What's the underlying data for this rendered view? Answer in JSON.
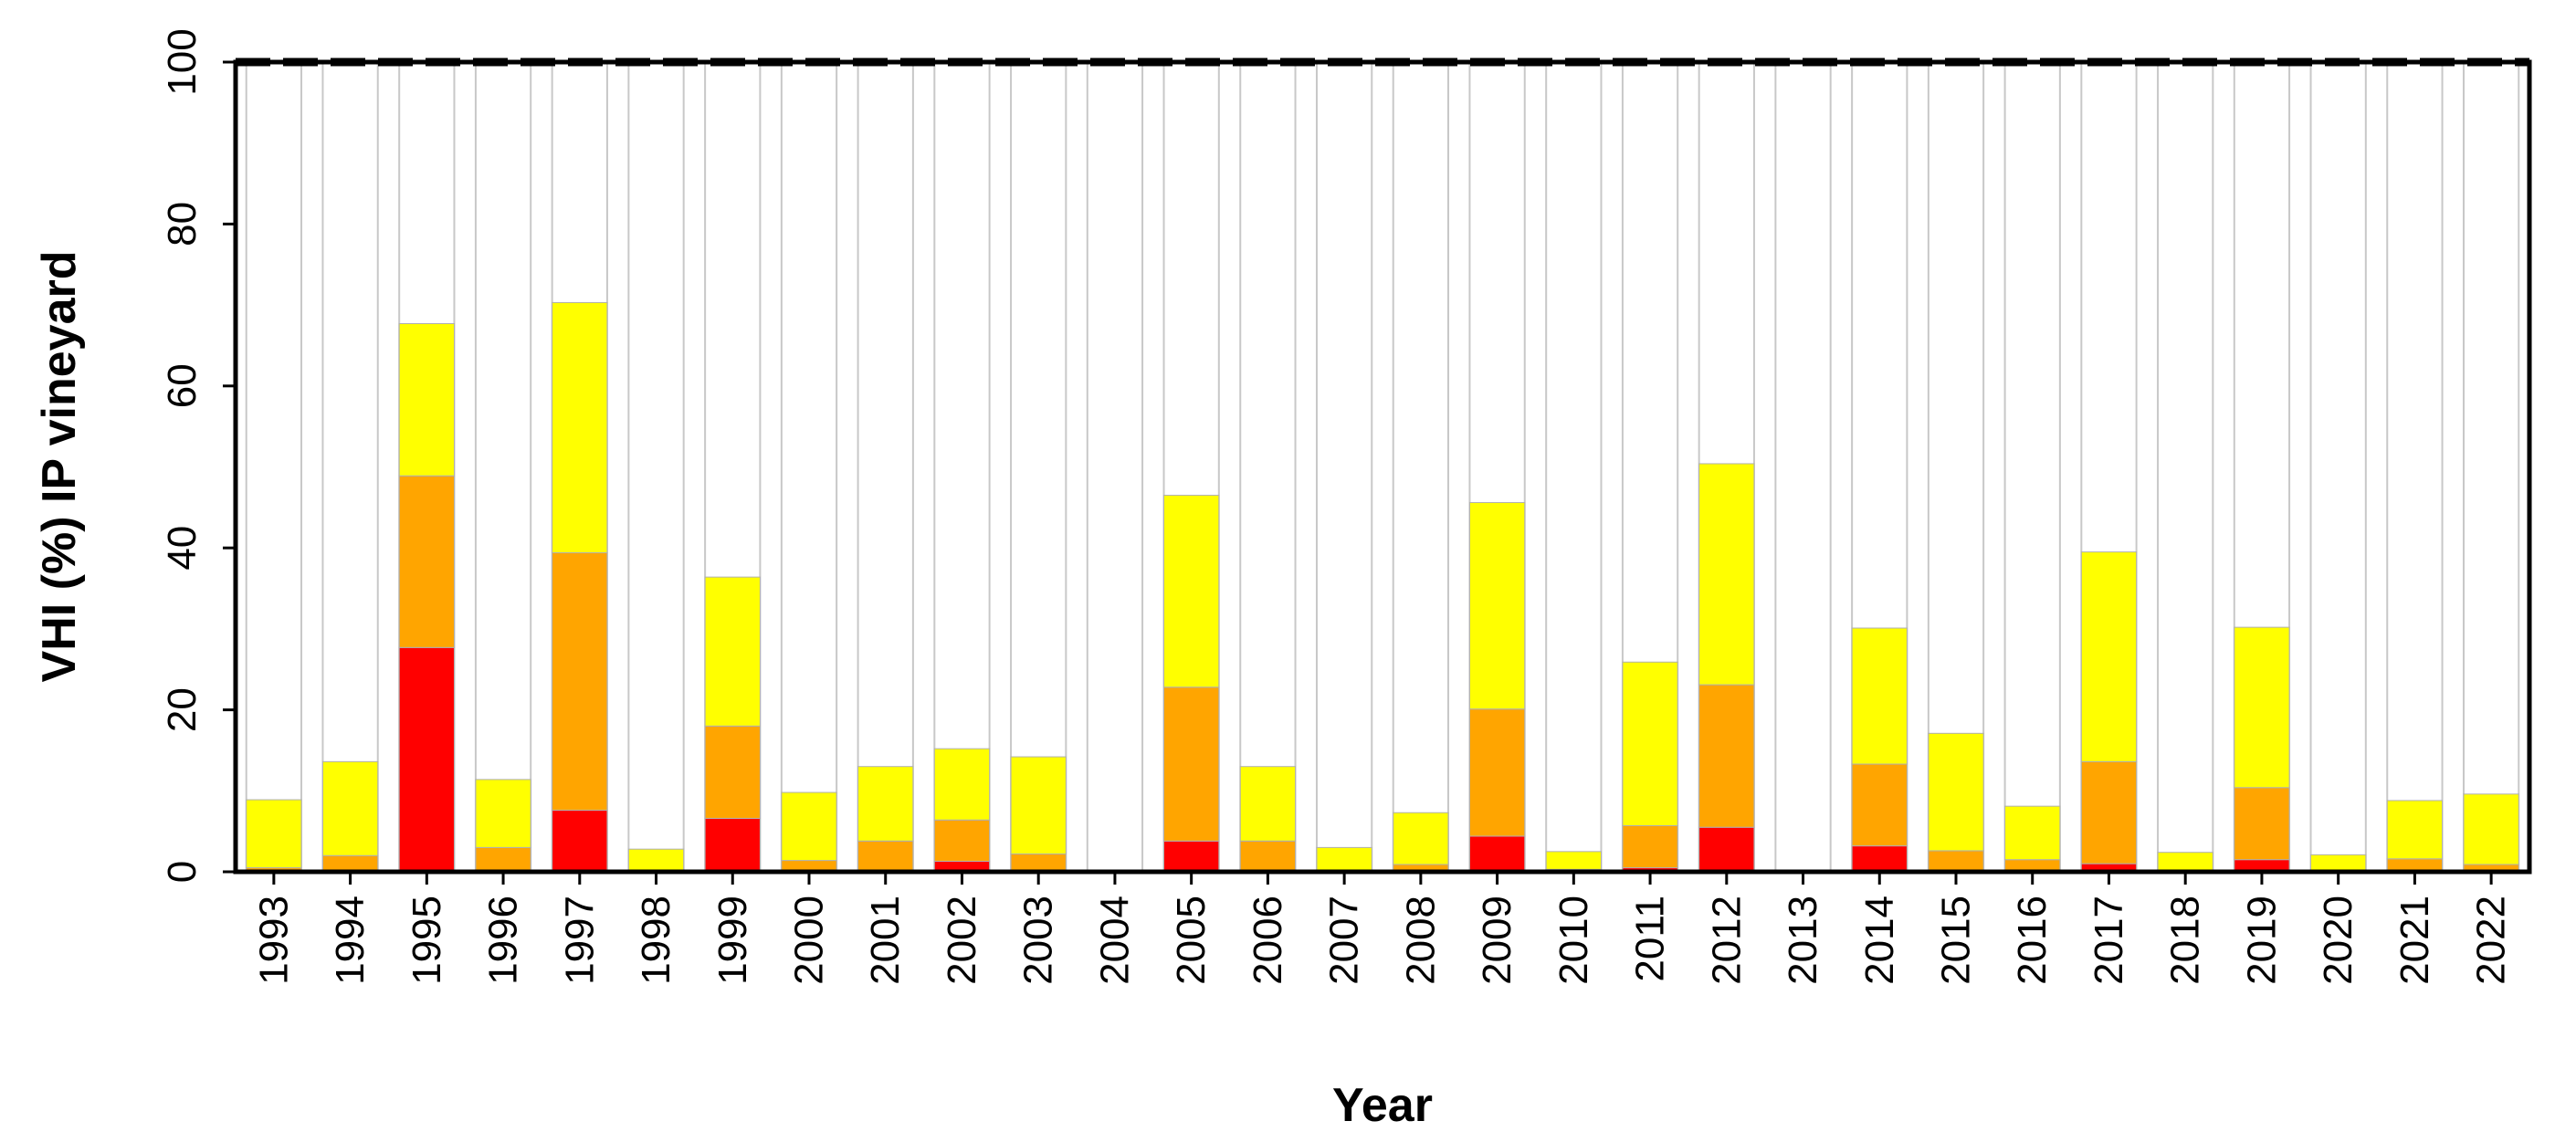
{
  "chart_data": {
    "type": "bar",
    "stacked": true,
    "title": "",
    "xlabel": "Year",
    "ylabel": "VHI (%) IP vineyard",
    "ylim": [
      0,
      100
    ],
    "yticks": [
      "0",
      "20",
      "40",
      "60",
      "80",
      "100"
    ],
    "grid": "light vertical lines at each category",
    "categories": [
      "1993",
      "1994",
      "1995",
      "1996",
      "1997",
      "1998",
      "1999",
      "2000",
      "2001",
      "2002",
      "2003",
      "2004",
      "2005",
      "2006",
      "2007",
      "2008",
      "2009",
      "2010",
      "2011",
      "2012",
      "2013",
      "2014",
      "2015",
      "2016",
      "2017",
      "2018",
      "2019",
      "2020",
      "2021",
      "2022"
    ],
    "series": [
      {
        "color": "#ff0000",
        "values": [
          0,
          0,
          27.7,
          0,
          7.6,
          0,
          6.6,
          0,
          0,
          1.3,
          0,
          0,
          3.8,
          0,
          0,
          0,
          4.4,
          0,
          0.5,
          5.5,
          0,
          3.2,
          0,
          0,
          1.0,
          0,
          1.5,
          0,
          0,
          0
        ]
      },
      {
        "color": "#ffa500",
        "values": [
          0.5,
          2.0,
          21.2,
          3.0,
          31.8,
          0,
          11.4,
          1.4,
          3.8,
          5.1,
          2.2,
          0,
          19.0,
          3.8,
          0,
          0.9,
          15.7,
          0.3,
          5.2,
          17.6,
          0,
          10.1,
          2.6,
          1.5,
          12.6,
          0,
          8.9,
          0.2,
          1.6,
          0.9
        ]
      },
      {
        "color": "#ffff00",
        "values": [
          8.4,
          11.6,
          18.8,
          8.4,
          30.9,
          2.8,
          18.4,
          8.4,
          9.2,
          8.8,
          12.0,
          0,
          23.7,
          9.2,
          3.0,
          6.4,
          25.5,
          2.2,
          20.2,
          27.3,
          0,
          16.8,
          14.5,
          6.6,
          25.9,
          2.4,
          19.8,
          1.9,
          7.2,
          8.7
        ]
      }
    ]
  }
}
